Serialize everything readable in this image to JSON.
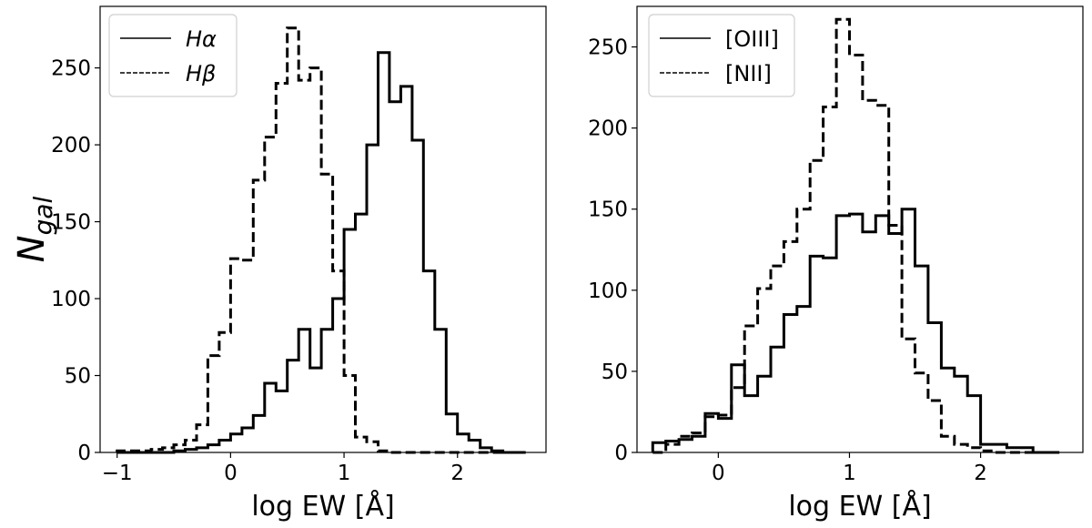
{
  "chart_data": [
    {
      "type": "histogram",
      "xlabel": "log EW [Å]",
      "ylabel": "N",
      "ylabel_sub": "gal",
      "xlim": [
        -1.15,
        2.78
      ],
      "ylim": [
        0,
        290
      ],
      "xticks": [
        -1,
        0,
        1,
        2
      ],
      "xtick_labels": [
        "−1",
        "0",
        "1",
        "2"
      ],
      "yticks": [
        0,
        50,
        100,
        150,
        200,
        250
      ],
      "legend_position": "top-left",
      "grid": false,
      "series": [
        {
          "name": "Hα",
          "name_main": "H",
          "name_greek": "α",
          "linestyle": "solid",
          "bin_edges": [
            -1.0,
            -0.9,
            -0.8,
            -0.7,
            -0.6,
            -0.5,
            -0.4,
            -0.3,
            -0.2,
            -0.1,
            0.0,
            0.1,
            0.2,
            0.3,
            0.4,
            0.5,
            0.6,
            0.7,
            0.8,
            0.9,
            1.0,
            1.1,
            1.2,
            1.3,
            1.4,
            1.5,
            1.6,
            1.7,
            1.8,
            1.9,
            2.0,
            2.1,
            2.2,
            2.3,
            2.4,
            2.5,
            2.6
          ],
          "counts": [
            0,
            0,
            0,
            0,
            0,
            1,
            2,
            3,
            5,
            8,
            12,
            16,
            24,
            45,
            40,
            60,
            80,
            55,
            80,
            100,
            145,
            155,
            200,
            260,
            228,
            238,
            203,
            118,
            80,
            25,
            12,
            8,
            3,
            1,
            0,
            0
          ]
        },
        {
          "name": "Hβ",
          "name_main": "H",
          "name_greek": "β",
          "linestyle": "dashed",
          "bin_edges": [
            -1.0,
            -0.9,
            -0.8,
            -0.7,
            -0.6,
            -0.5,
            -0.4,
            -0.3,
            -0.2,
            -0.1,
            0.0,
            0.1,
            0.2,
            0.3,
            0.4,
            0.5,
            0.6,
            0.7,
            0.8,
            0.9,
            1.0,
            1.1,
            1.2,
            1.3,
            1.4,
            1.5,
            1.6,
            1.7,
            1.8,
            1.9,
            2.0,
            2.1,
            2.2,
            2.3,
            2.4,
            2.5,
            2.6
          ],
          "counts": [
            1,
            1,
            1,
            2,
            3,
            5,
            8,
            18,
            63,
            78,
            126,
            125,
            177,
            205,
            240,
            276,
            242,
            250,
            181,
            118,
            50,
            10,
            7,
            1,
            0,
            0,
            0,
            0,
            0,
            0,
            0,
            0,
            0,
            0,
            0,
            0
          ]
        }
      ]
    },
    {
      "type": "histogram",
      "xlabel": "log EW [Å]",
      "ylabel": "",
      "xlim": [
        -0.62,
        2.78
      ],
      "ylim": [
        0,
        275
      ],
      "xticks": [
        0,
        1,
        2
      ],
      "xtick_labels": [
        "0",
        "1",
        "2"
      ],
      "yticks": [
        0,
        50,
        100,
        150,
        200,
        250
      ],
      "legend_position": "top-left",
      "grid": false,
      "series": [
        {
          "name": "[OIII]",
          "linestyle": "solid",
          "bin_edges": [
            -0.5,
            -0.4,
            -0.3,
            -0.2,
            -0.1,
            0.0,
            0.1,
            0.2,
            0.3,
            0.4,
            0.5,
            0.6,
            0.7,
            0.8,
            0.9,
            1.0,
            1.1,
            1.2,
            1.3,
            1.4,
            1.5,
            1.6,
            1.7,
            1.8,
            1.9,
            2.0,
            2.1,
            2.2,
            2.3,
            2.4,
            2.5,
            2.6
          ],
          "counts": [
            6,
            7,
            8,
            10,
            24,
            21,
            54,
            35,
            47,
            65,
            85,
            90,
            121,
            120,
            146,
            147,
            136,
            146,
            135,
            150,
            115,
            80,
            52,
            47,
            35,
            5,
            5,
            3,
            3,
            0,
            0
          ]
        },
        {
          "name": "[NII]",
          "linestyle": "dashed",
          "bin_edges": [
            -0.5,
            -0.4,
            -0.3,
            -0.2,
            -0.1,
            0.0,
            0.1,
            0.2,
            0.3,
            0.4,
            0.5,
            0.6,
            0.7,
            0.8,
            0.9,
            1.0,
            1.1,
            1.2,
            1.3,
            1.4,
            1.5,
            1.6,
            1.7,
            1.8,
            1.9,
            2.0,
            2.1,
            2.2,
            2.3,
            2.4,
            2.5,
            2.6
          ],
          "counts": [
            0,
            5,
            10,
            12,
            22,
            23,
            40,
            78,
            101,
            115,
            130,
            150,
            180,
            213,
            267,
            245,
            217,
            214,
            140,
            70,
            49,
            32,
            10,
            5,
            3,
            1,
            0,
            0,
            0,
            0,
            0
          ]
        }
      ]
    }
  ]
}
